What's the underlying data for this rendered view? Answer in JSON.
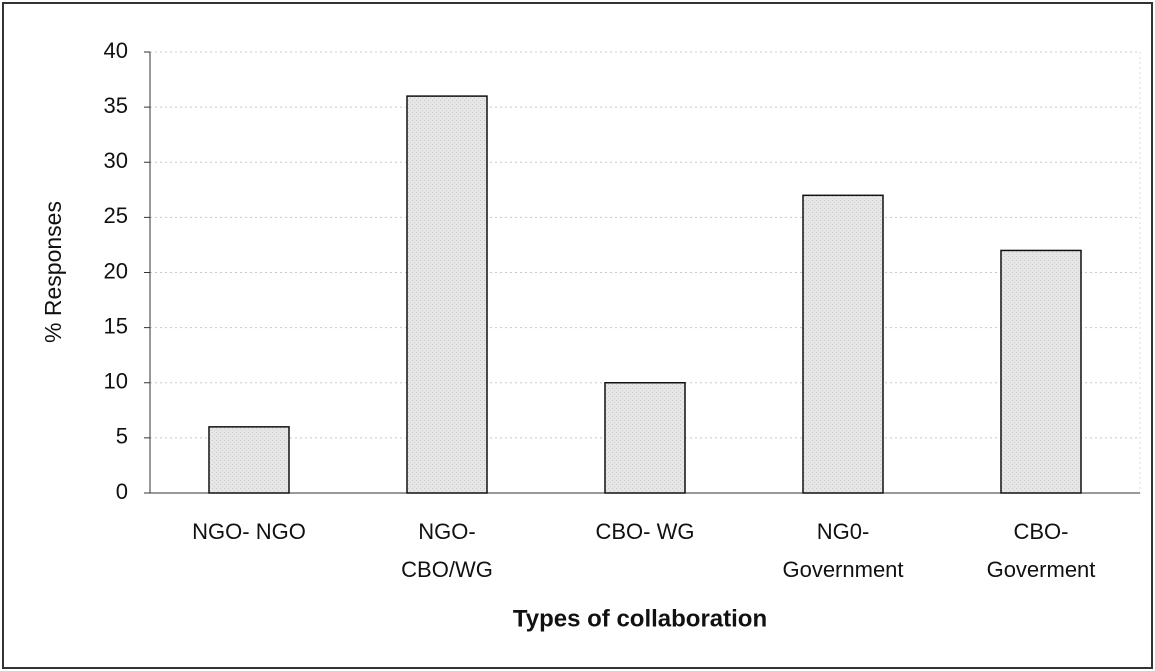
{
  "chart_data": {
    "type": "bar",
    "categories": [
      "NGO- NGO",
      "NGO-\nCBO/WG",
      "CBO- WG",
      "NG0-\nGovernment",
      "CBO-\nGoverment"
    ],
    "values": [
      6,
      36,
      10,
      27,
      22
    ],
    "color": "#e4e4e4",
    "x_label": "Types of collaboration",
    "y_label": "% Responses",
    "ylim": [
      0,
      40
    ],
    "yticks": [
      0,
      5,
      10,
      15,
      20,
      25,
      30,
      35,
      40
    ],
    "grid": true
  }
}
